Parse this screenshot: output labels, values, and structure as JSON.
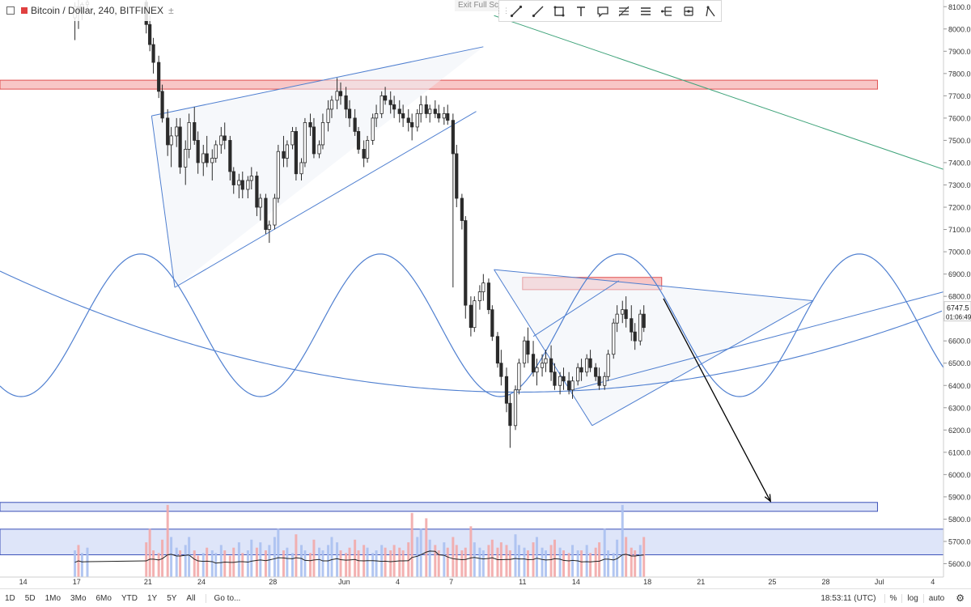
{
  "header": {
    "title": "Bitcoin / Dollar, 240, BITFINEX",
    "indicator_marker": "±"
  },
  "exit_fullscreen": "Exit Full Scree",
  "drawing_tools": [
    {
      "name": "trend-line-icon"
    },
    {
      "name": "ray-icon"
    },
    {
      "name": "rectangle-icon"
    },
    {
      "name": "text-icon"
    },
    {
      "name": "callout-icon"
    },
    {
      "name": "fib-retracement-icon"
    },
    {
      "name": "channel-icon"
    },
    {
      "name": "pitchfork-icon"
    },
    {
      "name": "gann-icon"
    },
    {
      "name": "pattern-icon"
    }
  ],
  "chart_data": {
    "type": "candlestick",
    "symbol": "Bitcoin / Dollar",
    "timeframe": "240",
    "exchange": "BITFINEX",
    "y_axis": {
      "min": 5540,
      "max": 8130,
      "ticks": [
        5600,
        5700,
        5800,
        5900,
        6000,
        6100,
        6200,
        6300,
        6400,
        6500,
        6600,
        6700,
        6800,
        6900,
        7000,
        7100,
        7200,
        7300,
        7400,
        7500,
        7600,
        7700,
        7800,
        7900,
        8000,
        8100
      ],
      "tick_labels": [
        "5600.0",
        "5700.0",
        "5800.0",
        "5900.0",
        "6000.0",
        "6100.0",
        "6200.0",
        "6300.0",
        "6400.0",
        "6500.0",
        "6600.0",
        "6700.0",
        "6800.0",
        "6900.0",
        "7000.0",
        "7100.0",
        "7200.0",
        "7300.0",
        "7400.0",
        "7500.0",
        "7600.0",
        "7700.0",
        "7800.0",
        "7900.0",
        "8000.0",
        "8100.0"
      ]
    },
    "x_axis": {
      "domain_days": [
        12.7,
        65.6
      ],
      "ticks": [
        {
          "day": 14,
          "label": "14"
        },
        {
          "day": 17,
          "label": "17"
        },
        {
          "day": 21,
          "label": "21"
        },
        {
          "day": 24,
          "label": "24"
        },
        {
          "day": 28,
          "label": "28"
        },
        {
          "day": 32,
          "label": "Jun"
        },
        {
          "day": 35,
          "label": "4"
        },
        {
          "day": 38,
          "label": "7"
        },
        {
          "day": 42,
          "label": "11"
        },
        {
          "day": 45,
          "label": "14"
        },
        {
          "day": 49,
          "label": "18"
        },
        {
          "day": 52,
          "label": "21"
        },
        {
          "day": 56,
          "label": "25"
        },
        {
          "day": 59,
          "label": "28"
        },
        {
          "day": 62,
          "label": "Jul"
        },
        {
          "day": 65,
          "label": "4"
        }
      ]
    },
    "current_price": {
      "value": 6747.5,
      "label": "6747.5",
      "countdown": "01:06:49"
    },
    "candles": [
      [
        16.9,
        8050,
        8120,
        7950,
        8100
      ],
      [
        17.1,
        8100,
        8130,
        8000,
        8080
      ],
      [
        17.3,
        8080,
        8120,
        8040,
        8110
      ],
      [
        17.6,
        8110,
        8130,
        8080,
        8120
      ],
      [
        20.9,
        8120,
        8130,
        7980,
        8020
      ],
      [
        21.1,
        8020,
        8060,
        7900,
        7930
      ],
      [
        21.3,
        7930,
        7960,
        7800,
        7850
      ],
      [
        21.6,
        7850,
        7880,
        7690,
        7720
      ],
      [
        21.8,
        7720,
        7750,
        7580,
        7600
      ],
      [
        22.1,
        7600,
        7640,
        7430,
        7480
      ],
      [
        22.3,
        7480,
        7560,
        7380,
        7520
      ],
      [
        22.6,
        7520,
        7600,
        7470,
        7560
      ],
      [
        22.8,
        7560,
        7600,
        7350,
        7380
      ],
      [
        23.1,
        7380,
        7500,
        7300,
        7460
      ],
      [
        23.3,
        7460,
        7620,
        7420,
        7580
      ],
      [
        23.6,
        7580,
        7650,
        7480,
        7500
      ],
      [
        23.8,
        7500,
        7540,
        7350,
        7400
      ],
      [
        24.1,
        7400,
        7480,
        7340,
        7440
      ],
      [
        24.3,
        7440,
        7520,
        7380,
        7400
      ],
      [
        24.6,
        7400,
        7460,
        7320,
        7420
      ],
      [
        24.8,
        7420,
        7500,
        7400,
        7480
      ],
      [
        25.1,
        7480,
        7560,
        7440,
        7520
      ],
      [
        25.3,
        7520,
        7580,
        7460,
        7500
      ],
      [
        25.6,
        7500,
        7520,
        7320,
        7360
      ],
      [
        25.8,
        7360,
        7380,
        7260,
        7300
      ],
      [
        26.1,
        7300,
        7350,
        7240,
        7320
      ],
      [
        26.3,
        7320,
        7360,
        7240,
        7280
      ],
      [
        26.6,
        7280,
        7340,
        7240,
        7320
      ],
      [
        26.8,
        7320,
        7380,
        7280,
        7340
      ],
      [
        27.1,
        7340,
        7360,
        7160,
        7200
      ],
      [
        27.3,
        7200,
        7260,
        7140,
        7240
      ],
      [
        27.6,
        7240,
        7260,
        7080,
        7100
      ],
      [
        27.8,
        7100,
        7140,
        7040,
        7120
      ],
      [
        28.1,
        7120,
        7260,
        7100,
        7240
      ],
      [
        28.3,
        7240,
        7480,
        7220,
        7450
      ],
      [
        28.6,
        7450,
        7520,
        7380,
        7420
      ],
      [
        28.8,
        7420,
        7500,
        7380,
        7480
      ],
      [
        29.1,
        7480,
        7560,
        7460,
        7540
      ],
      [
        29.3,
        7540,
        7560,
        7320,
        7350
      ],
      [
        29.6,
        7350,
        7420,
        7320,
        7400
      ],
      [
        29.8,
        7400,
        7600,
        7380,
        7580
      ],
      [
        30.1,
        7580,
        7620,
        7520,
        7560
      ],
      [
        30.3,
        7560,
        7600,
        7420,
        7440
      ],
      [
        30.6,
        7440,
        7500,
        7420,
        7480
      ],
      [
        30.8,
        7480,
        7620,
        7460,
        7580
      ],
      [
        31.1,
        7580,
        7680,
        7540,
        7640
      ],
      [
        31.3,
        7640,
        7700,
        7600,
        7680
      ],
      [
        31.6,
        7680,
        7780,
        7640,
        7720
      ],
      [
        31.8,
        7720,
        7760,
        7660,
        7700
      ],
      [
        32.1,
        7700,
        7740,
        7600,
        7640
      ],
      [
        32.3,
        7640,
        7680,
        7560,
        7600
      ],
      [
        32.6,
        7600,
        7640,
        7520,
        7540
      ],
      [
        32.8,
        7540,
        7560,
        7440,
        7460
      ],
      [
        33.1,
        7460,
        7500,
        7380,
        7420
      ],
      [
        33.3,
        7420,
        7520,
        7400,
        7500
      ],
      [
        33.6,
        7500,
        7620,
        7480,
        7600
      ],
      [
        33.8,
        7600,
        7660,
        7560,
        7620
      ],
      [
        34.1,
        7620,
        7720,
        7600,
        7700
      ],
      [
        34.3,
        7700,
        7740,
        7660,
        7680
      ],
      [
        34.6,
        7680,
        7720,
        7620,
        7660
      ],
      [
        34.8,
        7660,
        7700,
        7600,
        7640
      ],
      [
        35.1,
        7640,
        7680,
        7580,
        7620
      ],
      [
        35.3,
        7620,
        7660,
        7560,
        7600
      ],
      [
        35.6,
        7600,
        7640,
        7540,
        7580
      ],
      [
        35.8,
        7580,
        7620,
        7500,
        7560
      ],
      [
        36.1,
        7560,
        7640,
        7540,
        7620
      ],
      [
        36.3,
        7620,
        7700,
        7580,
        7660
      ],
      [
        36.6,
        7660,
        7700,
        7600,
        7620
      ],
      [
        36.8,
        7620,
        7660,
        7580,
        7640
      ],
      [
        37.1,
        7640,
        7680,
        7600,
        7620
      ],
      [
        37.3,
        7620,
        7660,
        7580,
        7600
      ],
      [
        37.6,
        7600,
        7650,
        7570,
        7620
      ],
      [
        37.8,
        7620,
        7660,
        7570,
        7590
      ],
      [
        38.1,
        7590,
        7620,
        6840,
        7440
      ],
      [
        38.3,
        7440,
        7480,
        7200,
        7240
      ],
      [
        38.6,
        7240,
        7260,
        7100,
        7140
      ],
      [
        38.8,
        7140,
        7160,
        6700,
        6760
      ],
      [
        39.1,
        6760,
        6800,
        6620,
        6660
      ],
      [
        39.3,
        6660,
        6800,
        6640,
        6780
      ],
      [
        39.6,
        6780,
        6850,
        6740,
        6820
      ],
      [
        39.8,
        6820,
        6900,
        6780,
        6860
      ],
      [
        40.1,
        6860,
        6880,
        6720,
        6740
      ],
      [
        40.3,
        6740,
        6760,
        6600,
        6620
      ],
      [
        40.6,
        6620,
        6640,
        6480,
        6500
      ],
      [
        40.8,
        6500,
        6560,
        6400,
        6440
      ],
      [
        41.1,
        6440,
        6480,
        6280,
        6320
      ],
      [
        41.3,
        6320,
        6360,
        6120,
        6220
      ],
      [
        41.6,
        6220,
        6400,
        6200,
        6380
      ],
      [
        41.8,
        6380,
        6520,
        6360,
        6500
      ],
      [
        42.1,
        6500,
        6620,
        6480,
        6600
      ],
      [
        42.3,
        6600,
        6660,
        6500,
        6540
      ],
      [
        42.6,
        6540,
        6600,
        6440,
        6460
      ],
      [
        42.8,
        6460,
        6520,
        6400,
        6480
      ],
      [
        43.1,
        6480,
        6540,
        6440,
        6500
      ],
      [
        43.3,
        6500,
        6560,
        6460,
        6520
      ],
      [
        43.6,
        6520,
        6580,
        6420,
        6460
      ],
      [
        43.8,
        6460,
        6500,
        6380,
        6400
      ],
      [
        44.1,
        6400,
        6460,
        6360,
        6440
      ],
      [
        44.3,
        6440,
        6480,
        6380,
        6420
      ],
      [
        44.6,
        6420,
        6460,
        6360,
        6380
      ],
      [
        44.8,
        6380,
        6440,
        6340,
        6420
      ],
      [
        45.1,
        6420,
        6500,
        6400,
        6480
      ],
      [
        45.3,
        6480,
        6520,
        6420,
        6460
      ],
      [
        45.6,
        6460,
        6540,
        6440,
        6520
      ],
      [
        45.8,
        6520,
        6560,
        6460,
        6480
      ],
      [
        46.1,
        6480,
        6500,
        6420,
        6440
      ],
      [
        46.3,
        6440,
        6480,
        6380,
        6400
      ],
      [
        46.6,
        6400,
        6460,
        6380,
        6440
      ],
      [
        46.8,
        6440,
        6560,
        6420,
        6540
      ],
      [
        47.1,
        6540,
        6700,
        6520,
        6680
      ],
      [
        47.3,
        6680,
        6760,
        6640,
        6720
      ],
      [
        47.6,
        6720,
        6780,
        6680,
        6740
      ],
      [
        47.8,
        6740,
        6800,
        6660,
        6700
      ],
      [
        48.1,
        6700,
        6760,
        6600,
        6640
      ],
      [
        48.3,
        6640,
        6680,
        6560,
        6600
      ],
      [
        48.6,
        6600,
        6740,
        6580,
        6720
      ],
      [
        48.8,
        6720,
        6760,
        6640,
        6660
      ]
    ],
    "volume": [
      1.0,
      1.2,
      0.9,
      1.1,
      1.3,
      1.8,
      1.0,
      0.9,
      1.4,
      2.7,
      1.5,
      1.1,
      1.0,
      1.2,
      1.5,
      1.0,
      0.8,
      0.9,
      1.1,
      1.0,
      0.9,
      1.2,
      1.0,
      0.8,
      1.1,
      1.3,
      0.9,
      1.0,
      1.4,
      1.1,
      1.3,
      1.0,
      1.2,
      1.5,
      1.8,
      1.0,
      1.1,
      0.9,
      1.6,
      1.2,
      1.0,
      0.9,
      1.4,
      1.1,
      1.0,
      1.2,
      1.5,
      1.3,
      1.0,
      0.9,
      1.1,
      1.4,
      1.0,
      1.2,
      1.1,
      0.9,
      1.0,
      1.2,
      1.1,
      1.0,
      1.2,
      1.1,
      1.0,
      1.3,
      2.4,
      1.5,
      1.8,
      2.2,
      1.4,
      1.2,
      1.0,
      1.3,
      1.1,
      1.5,
      1.2,
      1.0,
      1.1,
      1.9,
      1.3,
      1.1,
      1.0,
      1.2,
      1.4,
      1.1,
      1.3,
      1.2,
      1.0,
      1.6,
      1.2,
      1.1,
      1.0,
      1.3,
      1.5,
      1.1,
      1.0,
      1.2,
      1.4,
      1.1,
      1.0,
      0.9,
      1.2,
      1.0
    ],
    "horizontal_zones": [
      {
        "y1": 7730,
        "y2": 7770,
        "x1": 12.7,
        "x2": 61.9,
        "color": "#f4a0a0",
        "stroke": "#e05050"
      },
      {
        "y1": 6830,
        "y2": 6885,
        "x1": 42.0,
        "x2": 49.8,
        "color": "#f4a0a0",
        "stroke": "#e05050"
      },
      {
        "y1": 5835,
        "y2": 5875,
        "x1": 12.7,
        "x2": 61.9,
        "color": "#c8d3f5",
        "stroke": "#3a4fb8"
      },
      {
        "y1": 5640,
        "y2": 5755,
        "x1": 12.7,
        "x2": 65.6,
        "color": "#c8d3f5",
        "stroke": "#3a4fb8"
      }
    ],
    "trendlines": [
      {
        "x1": 21.2,
        "y1": 7610,
        "x2": 39.8,
        "y2": 7920,
        "color": "#4f7fd0"
      },
      {
        "x1": 22.5,
        "y1": 6840,
        "x2": 39.4,
        "y2": 7630,
        "color": "#4f7fd0"
      },
      {
        "x1": 21.2,
        "y1": 7610,
        "x2": 22.5,
        "y2": 6840,
        "color": "#4f7fd0"
      },
      {
        "x1": 40.4,
        "y1": 6920,
        "x2": 58.3,
        "y2": 6780,
        "color": "#4f7fd0"
      },
      {
        "x1": 40.4,
        "y1": 6920,
        "x2": 45.9,
        "y2": 6220,
        "color": "#4f7fd0"
      },
      {
        "x1": 45.9,
        "y1": 6220,
        "x2": 58.3,
        "y2": 6780,
        "color": "#4f7fd0"
      },
      {
        "x1": 42.6,
        "y1": 6620,
        "x2": 47.4,
        "y2": 6870,
        "color": "#4f7fd0"
      },
      {
        "x1": 44.8,
        "y1": 6380,
        "x2": 65.6,
        "y2": 6820,
        "color": "#4f7fd0"
      },
      {
        "x1": 40.4,
        "y1": 8060,
        "x2": 65.6,
        "y2": 7370,
        "color": "#3fa37a"
      }
    ],
    "arrow": {
      "x1": 49.9,
      "y1": 6790,
      "x2": 55.9,
      "y2": 5880,
      "color": "#000000"
    }
  },
  "bottom": {
    "ranges": [
      "1D",
      "5D",
      "1Mo",
      "3Mo",
      "6Mo",
      "YTD",
      "1Y",
      "5Y",
      "All"
    ],
    "goto": "Go to...",
    "clock": "18:53:11 (UTC)",
    "opts": [
      "%",
      "log",
      "auto"
    ],
    "settings_icon": "gear-icon"
  },
  "colors": {
    "up": "#ffffff",
    "down": "#2b2b2b",
    "wick": "#2b2b2b",
    "sine": "#4f7fd0",
    "volume_up": "#aac0f0",
    "volume_down": "#f2a8a8"
  }
}
